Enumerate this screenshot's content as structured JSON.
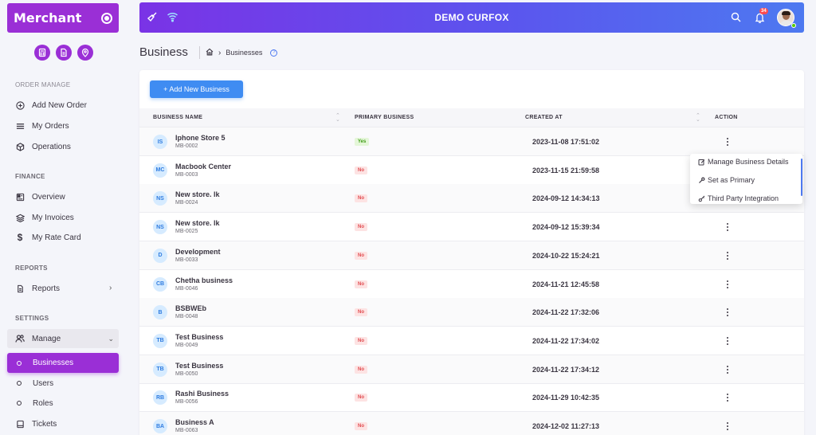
{
  "sidebar": {
    "brand": "Merchant",
    "quick_icons": [
      "calculator-icon",
      "document-icon",
      "location-pin-icon"
    ],
    "sections": {
      "order_manage": "ORDER MANAGE",
      "finance": "FINANCE",
      "reports": "REPORTS",
      "settings": "SETTINGS"
    },
    "items": {
      "add_new_order": "Add New Order",
      "my_orders": "My Orders",
      "operations": "Operations",
      "overview": "Overview",
      "my_invoices": "My Invoices",
      "my_rate_card": "My Rate Card",
      "reports": "Reports",
      "manage": "Manage",
      "businesses": "Businesses",
      "users": "Users",
      "roles": "Roles",
      "tickets": "Tickets"
    }
  },
  "header": {
    "title": "DEMO CURFOX",
    "notification_count": "34"
  },
  "page": {
    "title": "Business",
    "breadcrumb": [
      "Businesses"
    ]
  },
  "actions": {
    "add_button": "+ Add New Business"
  },
  "table": {
    "columns": {
      "name": "BUSINESS NAME",
      "primary": "PRIMARY BUSINESS",
      "created": "CREATED AT",
      "action": "ACTION"
    },
    "rows": [
      {
        "initials": "IS",
        "name": "Iphone Store 5",
        "code": "MB-0002",
        "primary": "Yes",
        "created": "2023-11-08 17:51:02"
      },
      {
        "initials": "MC",
        "name": "Macbook Center",
        "code": "MB-0003",
        "primary": "No",
        "created": "2023-11-15 21:59:58"
      },
      {
        "initials": "NS",
        "name": "New store. lk",
        "code": "MB-0024",
        "primary": "No",
        "created": "2024-09-12 14:34:13"
      },
      {
        "initials": "NS",
        "name": "New store. lk",
        "code": "MB-0025",
        "primary": "No",
        "created": "2024-09-12 15:39:34"
      },
      {
        "initials": "D",
        "name": "Development",
        "code": "MB-0033",
        "primary": "No",
        "created": "2024-10-22 15:24:21"
      },
      {
        "initials": "CB",
        "name": "Chetha business",
        "code": "MB-0046",
        "primary": "No",
        "created": "2024-11-21 12:45:58"
      },
      {
        "initials": "B",
        "name": "BSBWEb",
        "code": "MB-0048",
        "primary": "No",
        "created": "2024-11-22 17:32:06"
      },
      {
        "initials": "TB",
        "name": "Test Business",
        "code": "MB-0049",
        "primary": "No",
        "created": "2024-11-22 17:34:02"
      },
      {
        "initials": "TB",
        "name": "Test Business",
        "code": "MB-0050",
        "primary": "No",
        "created": "2024-11-22 17:34:12"
      },
      {
        "initials": "RB",
        "name": "Rashi Business",
        "code": "MB-0056",
        "primary": "No",
        "created": "2024-11-29 10:42:35"
      },
      {
        "initials": "BA",
        "name": "Business A",
        "code": "MB-0063",
        "primary": "No",
        "created": "2024-12-02 11:27:13"
      }
    ]
  },
  "action_menu": {
    "items": [
      "Manage Business Details",
      "Set as Primary",
      "Third Party Integration"
    ]
  },
  "colors": {
    "brand": "#9a2fd6",
    "accent": "#3f8cf2",
    "header_gradient_start": "#7a33e6",
    "header_gradient_end": "#4d79f0",
    "yes": "#3f9d16",
    "no": "#e0494d"
  }
}
